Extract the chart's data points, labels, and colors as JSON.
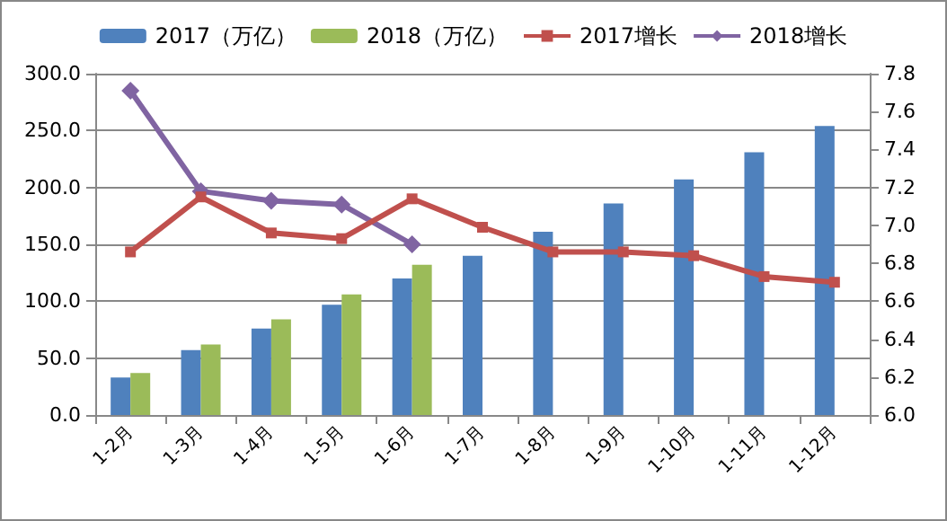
{
  "chart_data": {
    "type": "bar",
    "categories": [
      "1-2月",
      "1-3月",
      "1-4月",
      "1-5月",
      "1-6月",
      "1-7月",
      "1-8月",
      "1-9月",
      "1-10月",
      "1-11月",
      "1-12月"
    ],
    "series": [
      {
        "name": "2017（万亿）",
        "color": "#4f81bd",
        "values": [
          33,
          57,
          76,
          97,
          120,
          140,
          161,
          186,
          207,
          231,
          254
        ]
      },
      {
        "name": "2018（万亿）",
        "color": "#9bbb59",
        "values": [
          37,
          62,
          84,
          106,
          132,
          null,
          null,
          null,
          null,
          null,
          null
        ]
      },
      {
        "name": "2017增长",
        "type": "line",
        "axis": "y2",
        "marker": "square",
        "color": "#c0504d",
        "values": [
          6.86,
          7.15,
          6.96,
          6.93,
          7.14,
          6.99,
          6.86,
          6.86,
          6.84,
          6.73,
          6.7
        ]
      },
      {
        "name": "2018增长",
        "type": "line",
        "axis": "y2",
        "marker": "diamond",
        "color": "#8064a2",
        "values": [
          7.71,
          7.18,
          7.13,
          7.11,
          6.9,
          null,
          null,
          null,
          null,
          null,
          null
        ]
      }
    ],
    "ylim": [
      0,
      300
    ],
    "yticks": [
      {
        "value": 0,
        "label": "0.0"
      },
      {
        "value": 50,
        "label": "50.0"
      },
      {
        "value": 100,
        "label": "100.0"
      },
      {
        "value": 150,
        "label": "150.0"
      },
      {
        "value": 200,
        "label": "200.0"
      },
      {
        "value": 250,
        "label": "250.0"
      },
      {
        "value": 300,
        "label": "300.0"
      }
    ],
    "y2lim": [
      6,
      7.8
    ],
    "y2ticks": [
      {
        "value": 6,
        "label": "6.0"
      },
      {
        "value": 6.2,
        "label": "6.2"
      },
      {
        "value": 6.4,
        "label": "6.4"
      },
      {
        "value": 6.6,
        "label": "6.6"
      },
      {
        "value": 6.8,
        "label": "6.8"
      },
      {
        "value": 7,
        "label": "7.0"
      },
      {
        "value": 7.2,
        "label": "7.2"
      },
      {
        "value": 7.4,
        "label": "7.4"
      },
      {
        "value": 7.6,
        "label": "7.6"
      },
      {
        "value": 7.8,
        "label": "7.8"
      }
    ],
    "grid": "y",
    "legend": "top"
  }
}
